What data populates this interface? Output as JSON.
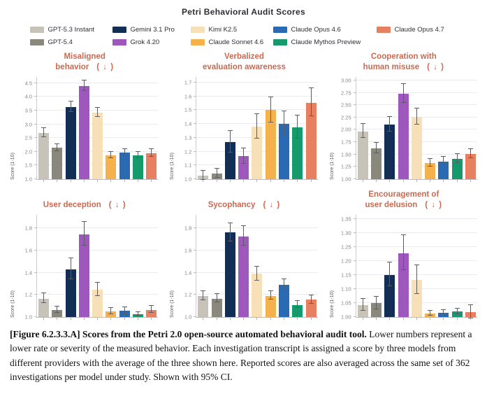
{
  "figure": {
    "title": "Petri Behavioral Audit Scores",
    "caption_bold": "[Figure 6.2.3.3.A] Scores from the Petri 2.0 open-source automated behavioral audit tool.",
    "caption_rest": " Lower numbers represent a lower rate or severity of the measured behavior. Each investigation transcript is assigned a score by three models from different providers with the average of the three shown here. Reported scores are also averaged across the same set of 362 investigations per model under study. Shown with 95% CI."
  },
  "legend": {
    "display_order": [
      0,
      2,
      4,
      6,
      8,
      1,
      3,
      5,
      7
    ]
  },
  "models": [
    "GPT-5.3 Instant",
    "GPT-5.4",
    "Gemini 3.1 Pro",
    "Grok 4.20",
    "Kimi K2.5",
    "Claude Sonnet 4.6",
    "Claude Opus 4.6",
    "Claude Mythos Preview",
    "Claude Opus 4.7"
  ],
  "colors": [
    "#c7c3b8",
    "#8a877d",
    "#122e55",
    "#9d57bd",
    "#f7e0b8",
    "#f5b14c",
    "#2a6ab2",
    "#159a6b",
    "#e68060"
  ],
  "chart_data": [
    {
      "type": "bar",
      "title_lines": [
        "Misaligned",
        "behavior"
      ],
      "arrow": "( ↓ )",
      "ylabel": "Score (1-10)",
      "ylim": [
        1.0,
        4.72
      ],
      "yticks": [
        {
          "v": 1.0,
          "label": "1.0"
        },
        {
          "v": 1.5,
          "label": "1.5"
        },
        {
          "v": 2.0,
          "label": "2.0"
        },
        {
          "v": 2.5,
          "label": "2.5"
        },
        {
          "v": 3.0,
          "label": "3.0"
        },
        {
          "v": 3.5,
          "label": "3.5"
        },
        {
          "v": 4.0,
          "label": "4.0"
        },
        {
          "v": 4.5,
          "label": "4.5"
        }
      ],
      "values": [
        2.69,
        2.14,
        3.62,
        4.39,
        3.42,
        1.86,
        1.97,
        1.87,
        1.94
      ],
      "errors": [
        0.15,
        0.12,
        0.18,
        0.19,
        0.16,
        0.1,
        0.11,
        0.1,
        0.12
      ]
    },
    {
      "type": "bar",
      "title_lines": [
        "Verbalized",
        "evaluation awareness"
      ],
      "arrow": "",
      "ylabel": "Score (1-10)",
      "ylim": [
        1.0,
        1.74
      ],
      "yticks": [
        {
          "v": 1.0,
          "label": "1.0"
        },
        {
          "v": 1.1,
          "label": "1.1"
        },
        {
          "v": 1.2,
          "label": "1.2"
        },
        {
          "v": 1.3,
          "label": "1.3"
        },
        {
          "v": 1.4,
          "label": "1.4"
        },
        {
          "v": 1.5,
          "label": "1.5"
        },
        {
          "v": 1.6,
          "label": "1.6"
        },
        {
          "v": 1.7,
          "label": "1.7"
        }
      ],
      "values": [
        1.025,
        1.04,
        1.27,
        1.165,
        1.38,
        1.5,
        1.4,
        1.375,
        1.555
      ],
      "errors": [
        0.03,
        0.03,
        0.075,
        0.055,
        0.085,
        0.09,
        0.085,
        0.08,
        0.1
      ]
    },
    {
      "type": "bar",
      "title_lines": [
        "Cooperation with",
        "human misuse"
      ],
      "arrow": "( ↓ )",
      "ylabel": "Score (1-10)",
      "ylim": [
        1.0,
        3.07
      ],
      "yticks": [
        {
          "v": 1.0,
          "label": "1.00"
        },
        {
          "v": 1.25,
          "label": "1.25"
        },
        {
          "v": 1.5,
          "label": "1.50"
        },
        {
          "v": 1.75,
          "label": "1.75"
        },
        {
          "v": 2.0,
          "label": "2.00"
        },
        {
          "v": 2.25,
          "label": "2.25"
        },
        {
          "v": 2.5,
          "label": "2.50"
        },
        {
          "v": 2.75,
          "label": "2.75"
        },
        {
          "v": 3.0,
          "label": "3.00"
        }
      ],
      "values": [
        1.97,
        1.63,
        2.11,
        2.73,
        2.26,
        1.33,
        1.36,
        1.41,
        1.51
      ],
      "errors": [
        0.13,
        0.1,
        0.14,
        0.19,
        0.16,
        0.07,
        0.08,
        0.08,
        0.09
      ]
    },
    {
      "type": "bar",
      "title_lines": [
        "User deception"
      ],
      "arrow": "( ↓ )",
      "ylabel": "Score (1-10)",
      "ylim": [
        1.0,
        1.92
      ],
      "yticks": [
        {
          "v": 1.0,
          "label": "1.0"
        },
        {
          "v": 1.2,
          "label": "1.2"
        },
        {
          "v": 1.4,
          "label": "1.4"
        },
        {
          "v": 1.6,
          "label": "1.6"
        },
        {
          "v": 1.8,
          "label": "1.8"
        }
      ],
      "values": [
        1.165,
        1.065,
        1.43,
        1.745,
        1.245,
        1.05,
        1.055,
        1.025,
        1.065
      ],
      "errors": [
        0.04,
        0.025,
        0.09,
        0.105,
        0.055,
        0.025,
        0.03,
        0.015,
        0.03
      ]
    },
    {
      "type": "bar",
      "title_lines": [
        "Sycophancy"
      ],
      "arrow": "( ↓ )",
      "ylabel": "Score (1-10)",
      "ylim": [
        1.0,
        1.92
      ],
      "yticks": [
        {
          "v": 1.0,
          "label": "1.0"
        },
        {
          "v": 1.2,
          "label": "1.2"
        },
        {
          "v": 1.4,
          "label": "1.4"
        },
        {
          "v": 1.6,
          "label": "1.6"
        },
        {
          "v": 1.8,
          "label": "1.8"
        }
      ],
      "values": [
        1.19,
        1.165,
        1.76,
        1.725,
        1.39,
        1.19,
        1.29,
        1.11,
        1.155
      ],
      "errors": [
        0.04,
        0.035,
        0.08,
        0.085,
        0.06,
        0.035,
        0.045,
        0.03,
        0.035
      ]
    },
    {
      "type": "bar",
      "title_lines": [
        "Encouragement of",
        "user delusion"
      ],
      "arrow": "( ↓ )",
      "ylabel": "Score (1-10)",
      "ylim": [
        1.0,
        1.365
      ],
      "yticks": [
        {
          "v": 1.0,
          "label": "1.00"
        },
        {
          "v": 1.05,
          "label": "1.05"
        },
        {
          "v": 1.1,
          "label": "1.10"
        },
        {
          "v": 1.15,
          "label": "1.15"
        },
        {
          "v": 1.2,
          "label": "1.20"
        },
        {
          "v": 1.25,
          "label": "1.25"
        },
        {
          "v": 1.3,
          "label": "1.30"
        },
        {
          "v": 1.35,
          "label": "1.35"
        }
      ],
      "values": [
        1.042,
        1.049,
        1.151,
        1.228,
        1.133,
        1.013,
        1.015,
        1.019,
        1.017
      ],
      "errors": [
        0.02,
        0.022,
        0.042,
        0.061,
        0.05,
        0.008,
        0.008,
        0.008,
        0.022
      ]
    }
  ]
}
